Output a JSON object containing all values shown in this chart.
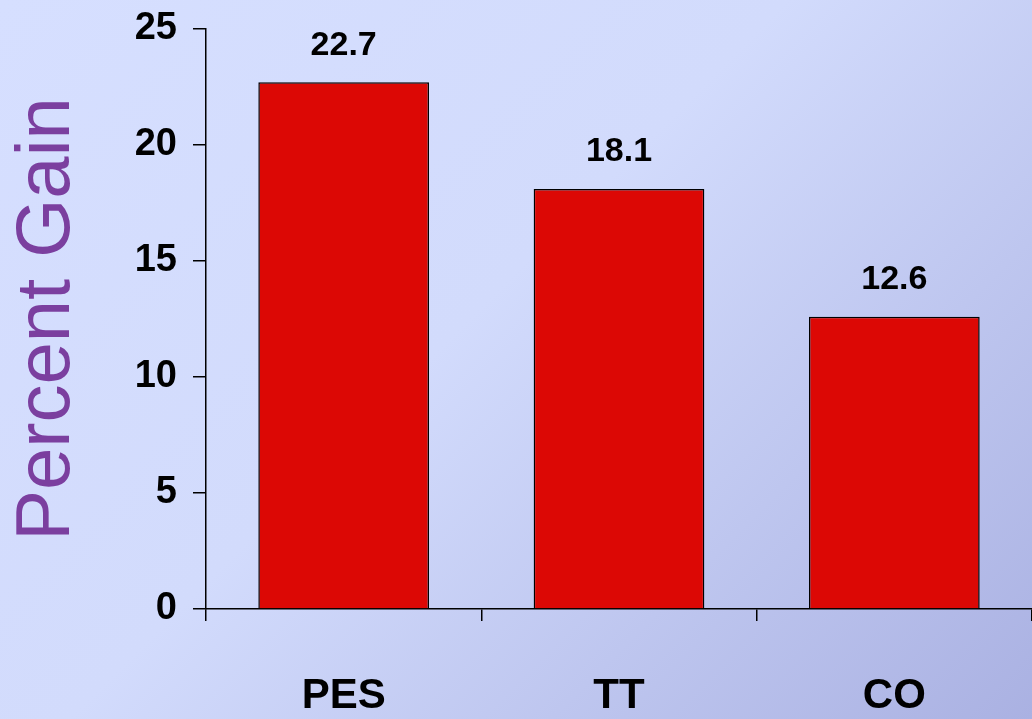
{
  "chart_data": {
    "type": "bar",
    "categories": [
      "PES",
      "TT",
      "CO"
    ],
    "values": [
      22.7,
      18.1,
      12.6
    ],
    "color": "#dc0805",
    "ylabel": "Percent Gain",
    "ylim": [
      0,
      25
    ],
    "yticks": [
      0,
      5,
      10,
      15,
      20,
      25
    ],
    "data_labels": true
  }
}
